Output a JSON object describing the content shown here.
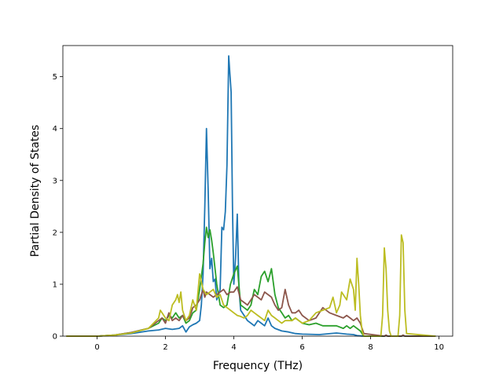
{
  "chart_data": {
    "type": "line",
    "title": "",
    "xlabel": "Frequency (THz)",
    "ylabel": "Partial Density of States",
    "xlim": [
      -1.0,
      10.4
    ],
    "ylim": [
      0,
      5.6
    ],
    "xticks": [
      0,
      2,
      4,
      6,
      8,
      10
    ],
    "yticks": [
      0,
      1,
      2,
      3,
      4,
      5
    ],
    "grid": false,
    "legend": "none",
    "series": [
      {
        "color": "#1f77b4",
        "x": [
          -0.9,
          0.0,
          0.5,
          1.0,
          1.5,
          1.8,
          2.0,
          2.2,
          2.4,
          2.5,
          2.6,
          2.7,
          2.8,
          2.9,
          3.0,
          3.05,
          3.1,
          3.15,
          3.2,
          3.25,
          3.3,
          3.35,
          3.4,
          3.45,
          3.5,
          3.55,
          3.6,
          3.65,
          3.7,
          3.75,
          3.8,
          3.85,
          3.88,
          3.92,
          3.96,
          4.0,
          4.05,
          4.1,
          4.15,
          4.2,
          4.3,
          4.4,
          4.5,
          4.6,
          4.7,
          4.8,
          4.9,
          5.0,
          5.1,
          5.2,
          5.4,
          5.6,
          5.8,
          6.0,
          6.5,
          7.0,
          7.3,
          7.5,
          7.6,
          7.8,
          8.4,
          8.45,
          8.5,
          8.9,
          8.95,
          9.0,
          9.9
        ],
        "y": [
          0,
          0,
          0.02,
          0.05,
          0.1,
          0.12,
          0.15,
          0.13,
          0.15,
          0.2,
          0.08,
          0.18,
          0.22,
          0.25,
          0.3,
          0.6,
          1.2,
          2.5,
          4.0,
          2.8,
          1.3,
          1.5,
          1.05,
          1.1,
          0.7,
          0.8,
          0.9,
          2.1,
          2.05,
          2.4,
          3.3,
          5.4,
          5.1,
          4.7,
          2.5,
          1.0,
          1.5,
          2.35,
          0.9,
          0.5,
          0.4,
          0.3,
          0.25,
          0.2,
          0.3,
          0.25,
          0.2,
          0.35,
          0.2,
          0.15,
          0.1,
          0.08,
          0.05,
          0.04,
          0.03,
          0.06,
          0.04,
          0.03,
          0.01,
          0,
          0,
          0.01,
          0,
          0,
          0.01,
          0,
          0
        ]
      },
      {
        "color": "#2ca02c",
        "x": [
          -0.9,
          0.0,
          0.5,
          1.0,
          1.5,
          1.8,
          1.9,
          2.0,
          2.1,
          2.2,
          2.3,
          2.4,
          2.5,
          2.6,
          2.7,
          2.8,
          2.9,
          3.0,
          3.1,
          3.15,
          3.2,
          3.25,
          3.3,
          3.35,
          3.4,
          3.5,
          3.6,
          3.7,
          3.8,
          3.9,
          4.0,
          4.1,
          4.2,
          4.3,
          4.4,
          4.5,
          4.6,
          4.7,
          4.8,
          4.9,
          5.0,
          5.1,
          5.2,
          5.3,
          5.4,
          5.5,
          5.6,
          5.7,
          5.8,
          5.9,
          6.0,
          6.2,
          6.4,
          6.6,
          6.8,
          7.0,
          7.2,
          7.3,
          7.4,
          7.5,
          7.6,
          7.7,
          7.75,
          7.8,
          8.4,
          8.45,
          8.5,
          8.9,
          8.95,
          9.0,
          9.9
        ],
        "y": [
          0,
          0,
          0.02,
          0.07,
          0.15,
          0.25,
          0.35,
          0.3,
          0.4,
          0.35,
          0.45,
          0.35,
          0.4,
          0.25,
          0.3,
          0.45,
          0.5,
          0.9,
          1.4,
          1.8,
          2.1,
          1.9,
          2.05,
          1.85,
          1.6,
          1.0,
          0.6,
          0.55,
          0.6,
          1.0,
          1.2,
          1.35,
          0.6,
          0.55,
          0.5,
          0.6,
          0.9,
          0.8,
          1.15,
          1.25,
          1.05,
          1.3,
          0.8,
          0.55,
          0.45,
          0.35,
          0.4,
          0.3,
          0.35,
          0.3,
          0.25,
          0.22,
          0.25,
          0.2,
          0.2,
          0.2,
          0.15,
          0.2,
          0.15,
          0.2,
          0.15,
          0.1,
          0.05,
          0,
          0,
          0.02,
          0,
          0,
          0.02,
          0,
          0
        ]
      },
      {
        "color": "#8c564b",
        "x": [
          -0.9,
          0.0,
          0.5,
          1.0,
          1.5,
          1.8,
          1.9,
          2.0,
          2.1,
          2.2,
          2.3,
          2.4,
          2.5,
          2.6,
          2.7,
          2.8,
          2.9,
          3.0,
          3.1,
          3.15,
          3.2,
          3.3,
          3.4,
          3.5,
          3.6,
          3.7,
          3.8,
          3.9,
          4.0,
          4.1,
          4.2,
          4.3,
          4.4,
          4.5,
          4.6,
          4.7,
          4.8,
          4.9,
          5.0,
          5.1,
          5.2,
          5.3,
          5.4,
          5.5,
          5.6,
          5.7,
          5.8,
          5.9,
          6.0,
          6.2,
          6.4,
          6.6,
          6.8,
          7.0,
          7.2,
          7.3,
          7.4,
          7.5,
          7.6,
          7.7,
          7.8,
          8.4,
          8.45,
          8.5,
          8.9,
          8.95,
          9.0,
          9.9
        ],
        "y": [
          0,
          0,
          0.02,
          0.07,
          0.15,
          0.3,
          0.35,
          0.25,
          0.45,
          0.3,
          0.35,
          0.3,
          0.4,
          0.3,
          0.35,
          0.55,
          0.6,
          0.7,
          0.9,
          0.75,
          0.85,
          0.8,
          0.75,
          0.8,
          0.85,
          0.9,
          0.8,
          0.85,
          0.85,
          0.95,
          0.7,
          0.65,
          0.6,
          0.7,
          0.8,
          0.75,
          0.7,
          0.85,
          0.8,
          0.75,
          0.6,
          0.5,
          0.55,
          0.9,
          0.6,
          0.45,
          0.45,
          0.5,
          0.4,
          0.3,
          0.35,
          0.55,
          0.45,
          0.4,
          0.35,
          0.4,
          0.35,
          0.3,
          0.35,
          0.25,
          0.05,
          0,
          0.02,
          0,
          0,
          0.02,
          0,
          0
        ]
      },
      {
        "color": "#bcbd22",
        "x": [
          -0.9,
          0.0,
          0.5,
          1.0,
          1.5,
          1.8,
          1.85,
          1.9,
          2.0,
          2.1,
          2.2,
          2.3,
          2.35,
          2.4,
          2.45,
          2.5,
          2.6,
          2.7,
          2.8,
          2.9,
          3.0,
          3.1,
          3.2,
          3.3,
          3.4,
          3.5,
          3.6,
          3.7,
          3.8,
          3.9,
          4.0,
          4.1,
          4.2,
          4.3,
          4.4,
          4.5,
          4.6,
          4.7,
          4.8,
          4.9,
          5.0,
          5.1,
          5.2,
          5.3,
          5.4,
          5.5,
          5.6,
          5.7,
          5.8,
          5.9,
          6.0,
          6.2,
          6.4,
          6.6,
          6.8,
          6.9,
          7.0,
          7.1,
          7.15,
          7.2,
          7.3,
          7.4,
          7.5,
          7.55,
          7.6,
          7.65,
          7.7,
          7.75,
          7.8,
          8.3,
          8.35,
          8.4,
          8.45,
          8.5,
          8.55,
          8.6,
          8.8,
          8.85,
          8.9,
          8.95,
          9.0,
          9.05,
          9.9
        ],
        "y": [
          0,
          0,
          0.02,
          0.06,
          0.15,
          0.35,
          0.5,
          0.45,
          0.35,
          0.3,
          0.6,
          0.7,
          0.8,
          0.65,
          0.85,
          0.5,
          0.3,
          0.4,
          0.7,
          0.5,
          1.2,
          0.9,
          0.8,
          0.85,
          0.9,
          0.75,
          0.8,
          0.6,
          0.55,
          0.5,
          0.45,
          0.4,
          0.38,
          0.35,
          0.4,
          0.5,
          0.45,
          0.4,
          0.35,
          0.3,
          0.5,
          0.4,
          0.35,
          0.3,
          0.25,
          0.3,
          0.3,
          0.3,
          0.35,
          0.3,
          0.25,
          0.3,
          0.45,
          0.5,
          0.55,
          0.75,
          0.45,
          0.6,
          0.85,
          0.8,
          0.7,
          1.1,
          0.9,
          0.5,
          1.5,
          1.0,
          0.4,
          0.1,
          0,
          0,
          0.4,
          1.7,
          1.3,
          0.5,
          0.1,
          0,
          0,
          0.4,
          1.95,
          1.8,
          0.5,
          0.05,
          0
        ]
      }
    ]
  }
}
